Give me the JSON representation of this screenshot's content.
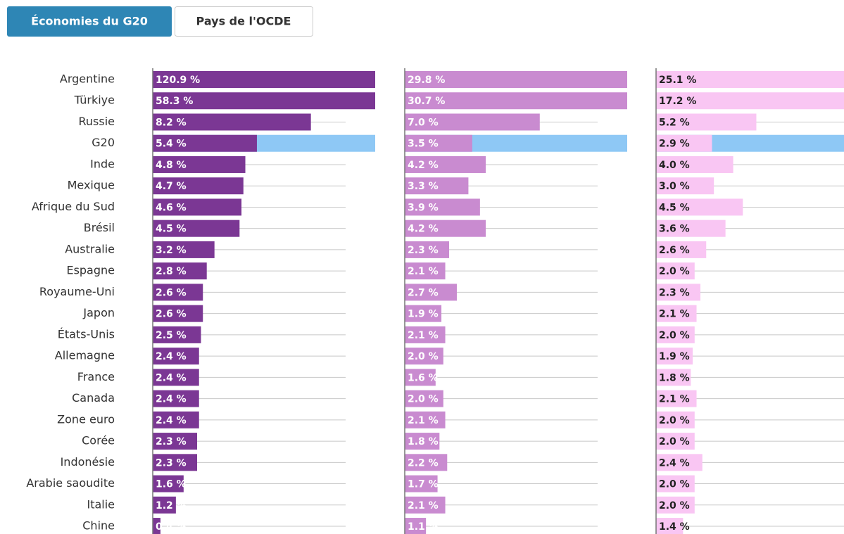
{
  "tabs": [
    "Économies du G20",
    "Pays de l'OCDE"
  ],
  "chart_data": [
    {
      "type": "bar",
      "orientation": "horizontal",
      "color": "#7b3794",
      "label_color": "#ffffff",
      "highlight": "G20",
      "highlight_color": "#8ec8f5",
      "xlim": [
        0,
        10
      ],
      "categories": [
        "Argentine",
        "Türkiye",
        "Russie",
        "G20",
        "Inde",
        "Mexique",
        "Afrique du Sud",
        "Brésil",
        "Australie",
        "Espagne",
        "Royaume-Uni",
        "Japon",
        "États-Unis",
        "Allemagne",
        "France",
        "Canada",
        "Zone euro",
        "Corée",
        "Indonésie",
        "Arabie saoudite",
        "Italie",
        "Chine"
      ],
      "values": [
        120.9,
        58.3,
        8.2,
        5.4,
        4.8,
        4.7,
        4.6,
        4.5,
        3.2,
        2.8,
        2.6,
        2.6,
        2.5,
        2.4,
        2.4,
        2.4,
        2.4,
        2.3,
        2.3,
        1.6,
        1.2,
        0.4
      ],
      "value_labels": [
        "120.9 %",
        "58.3 %",
        "8.2 %",
        "5.4 %",
        "4.8 %",
        "4.7 %",
        "4.6 %",
        "4.5 %",
        "3.2 %",
        "2.8 %",
        "2.6 %",
        "2.6 %",
        "2.5 %",
        "2.4 %",
        "2.4 %",
        "2.4 %",
        "2.4 %",
        "2.3 %",
        "2.3 %",
        "1.6 %",
        "1.2 %",
        "0.4 %"
      ]
    },
    {
      "type": "bar",
      "orientation": "horizontal",
      "color": "#c98bd0",
      "label_color": "#ffffff",
      "highlight": "G20",
      "highlight_color": "#8ec8f5",
      "xlim": [
        0,
        10
      ],
      "values": [
        29.8,
        30.7,
        7.0,
        3.5,
        4.2,
        3.3,
        3.9,
        4.2,
        2.3,
        2.1,
        2.7,
        1.9,
        2.1,
        2.0,
        1.6,
        2.0,
        2.1,
        1.8,
        2.2,
        1.7,
        2.1,
        1.1
      ],
      "value_labels": [
        "29.8 %",
        "30.7 %",
        "7.0 %",
        "3.5 %",
        "4.2 %",
        "3.3 %",
        "3.9 %",
        "4.2 %",
        "2.3 %",
        "2.1 %",
        "2.7 %",
        "1.9 %",
        "2.1 %",
        "2.0 %",
        "1.6 %",
        "2.0 %",
        "2.1 %",
        "1.8 %",
        "2.2 %",
        "1.7 %",
        "2.1 %",
        "1.1 %"
      ]
    },
    {
      "type": "bar",
      "orientation": "horizontal",
      "color": "#f9c6f3",
      "label_color": "#222222",
      "highlight": "G20",
      "highlight_color": "#8ec8f5",
      "xlim": [
        0,
        10
      ],
      "values": [
        25.1,
        17.2,
        5.2,
        2.9,
        4.0,
        3.0,
        4.5,
        3.6,
        2.6,
        2.0,
        2.3,
        2.1,
        2.0,
        1.9,
        1.8,
        2.1,
        2.0,
        2.0,
        2.4,
        2.0,
        2.0,
        1.4
      ],
      "value_labels": [
        "25.1 %",
        "17.2 %",
        "5.2 %",
        "2.9 %",
        "4.0 %",
        "3.0 %",
        "4.5 %",
        "3.6 %",
        "2.6 %",
        "2.0 %",
        "2.3 %",
        "2.1 %",
        "2.0 %",
        "1.9 %",
        "1.8 %",
        "2.1 %",
        "2.0 %",
        "2.0 %",
        "2.4 %",
        "2.0 %",
        "2.0 %",
        "1.4 %"
      ]
    }
  ]
}
